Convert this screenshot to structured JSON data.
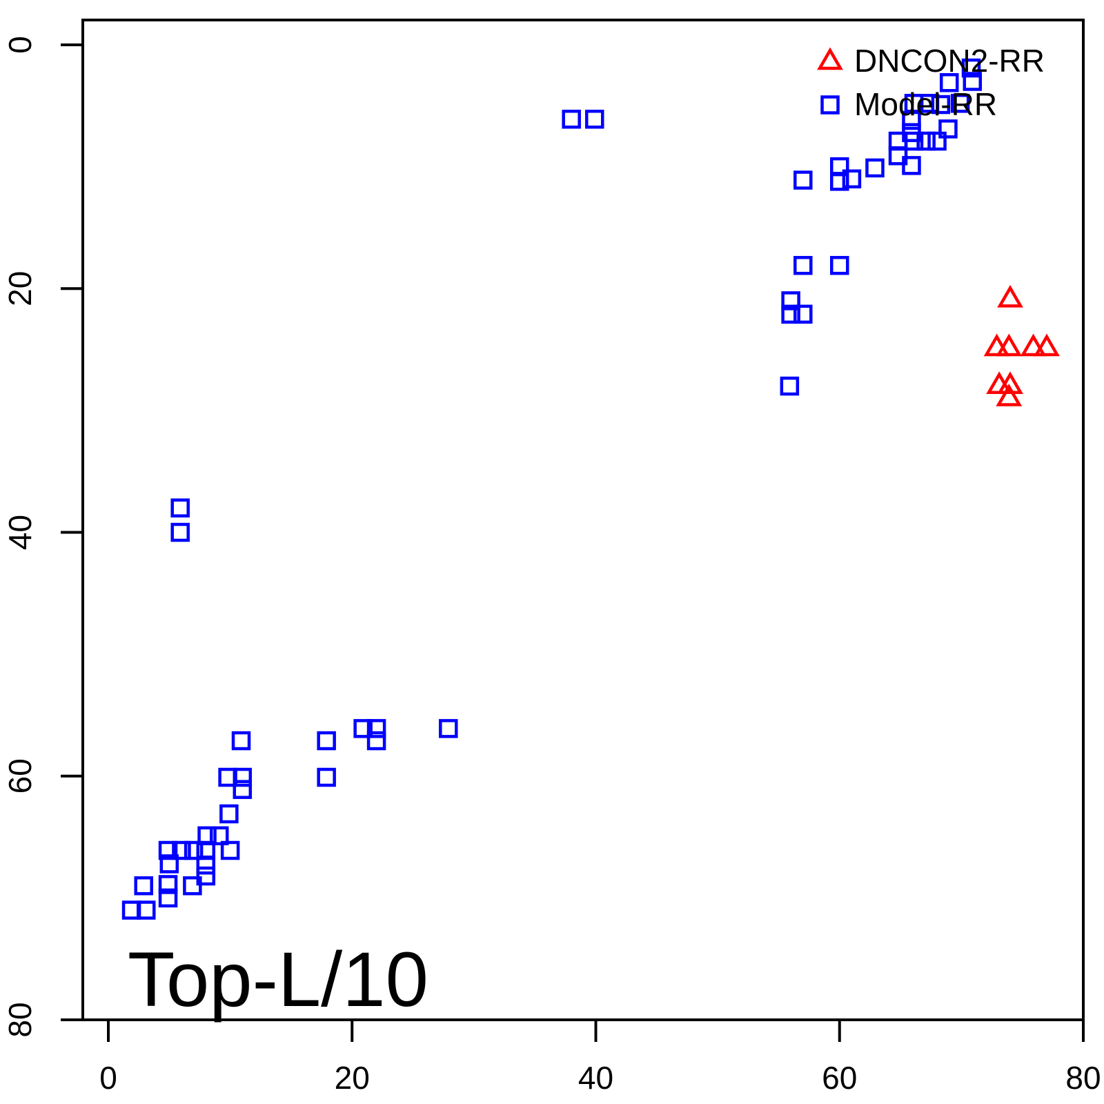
{
  "chart_data": {
    "type": "scatter",
    "title": "",
    "xlabel": "",
    "ylabel": "",
    "annotation": "Top-L/10",
    "grid": false,
    "xlim": [
      0,
      80
    ],
    "ylim": [
      80,
      0
    ],
    "y_axis_inverted": true,
    "x_ticks": [
      "0",
      "20",
      "40",
      "60",
      "80"
    ],
    "y_ticks": [
      "0",
      "20",
      "40",
      "60",
      "80"
    ],
    "x_tick_values": [
      0,
      20,
      40,
      60,
      80
    ],
    "y_tick_values": [
      0,
      20,
      40,
      60,
      80
    ],
    "frame_color": "#000000",
    "legend": {
      "position": "top-right",
      "entries": [
        {
          "label": "DNCON2-RR",
          "marker": "triangle",
          "color": "#FF0000"
        },
        {
          "label": "Model-RR",
          "marker": "square",
          "color": "#0000FF"
        }
      ]
    },
    "series": [
      {
        "name": "DNCON2-RR",
        "marker": "triangle",
        "color": "#FF0000",
        "points": [
          [
            74.0,
            20.8
          ],
          [
            72.9,
            24.8
          ],
          [
            73.9,
            24.8
          ],
          [
            75.9,
            24.8
          ],
          [
            77.0,
            24.8
          ],
          [
            73.1,
            27.9
          ],
          [
            74.0,
            27.9
          ],
          [
            73.9,
            28.9
          ]
        ]
      },
      {
        "name": "Model-RR",
        "marker": "square",
        "color": "#0000FF",
        "points": [
          [
            70.8,
            1.9
          ],
          [
            70.9,
            3.0
          ],
          [
            69.0,
            3.1
          ],
          [
            66.1,
            4.8
          ],
          [
            67.4,
            4.8
          ],
          [
            68.3,
            4.9
          ],
          [
            69.9,
            4.8
          ],
          [
            65.9,
            6.2
          ],
          [
            68.9,
            6.9
          ],
          [
            65.9,
            7.2
          ],
          [
            64.8,
            7.9
          ],
          [
            66.1,
            7.9
          ],
          [
            67.1,
            7.9
          ],
          [
            68.0,
            7.9
          ],
          [
            64.8,
            9.1
          ],
          [
            65.9,
            9.9
          ],
          [
            62.9,
            10.1
          ],
          [
            60.0,
            10.0
          ],
          [
            60.0,
            11.2
          ],
          [
            61.0,
            11.0
          ],
          [
            57.0,
            11.1
          ],
          [
            38.0,
            6.1
          ],
          [
            39.9,
            6.1
          ],
          [
            57.0,
            18.1
          ],
          [
            60.0,
            18.1
          ],
          [
            56.0,
            21.0
          ],
          [
            56.0,
            22.1
          ],
          [
            57.0,
            22.1
          ],
          [
            55.9,
            28.0
          ],
          [
            5.9,
            38.0
          ],
          [
            5.9,
            40.0
          ],
          [
            17.9,
            57.1
          ],
          [
            20.9,
            56.1
          ],
          [
            22.0,
            56.1
          ],
          [
            22.0,
            57.1
          ],
          [
            27.9,
            56.1
          ],
          [
            10.9,
            57.1
          ],
          [
            9.8,
            60.1
          ],
          [
            11.0,
            60.1
          ],
          [
            11.0,
            61.1
          ],
          [
            9.9,
            63.1
          ],
          [
            17.9,
            60.1
          ],
          [
            8.1,
            64.9
          ],
          [
            9.1,
            64.9
          ],
          [
            4.9,
            66.1
          ],
          [
            6.0,
            66.1
          ],
          [
            7.0,
            66.1
          ],
          [
            8.0,
            66.1
          ],
          [
            10.0,
            66.1
          ],
          [
            5.0,
            67.2
          ],
          [
            8.0,
            67.3
          ],
          [
            8.0,
            68.2
          ],
          [
            2.9,
            69.0
          ],
          [
            4.9,
            68.9
          ],
          [
            4.9,
            70.0
          ],
          [
            6.9,
            69.0
          ],
          [
            1.9,
            71.0
          ],
          [
            3.1,
            71.0
          ]
        ]
      }
    ]
  }
}
